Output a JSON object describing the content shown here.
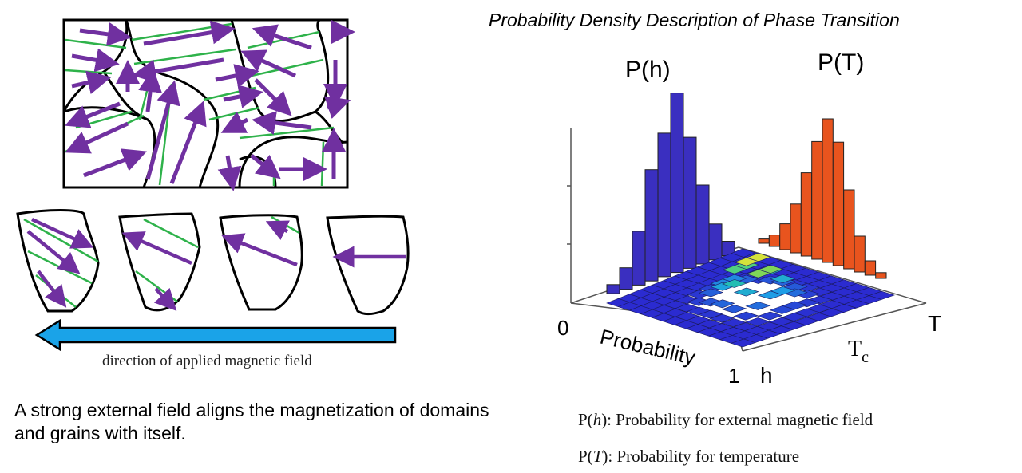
{
  "left_panel": {
    "field_direction_label": "direction of applied magnetic field",
    "caption": "A strong external field aligns the magnetization of domains and grains with itself.",
    "colors": {
      "arrow": "#7030a0",
      "boundary": "#2eb24a",
      "field_arrow": "#1aa3e8",
      "outline": "#000000"
    }
  },
  "right_panel": {
    "title": "Probability Density Description of Phase Transition",
    "label_ph": "P(h)",
    "label_pt": "P(T)",
    "axis_zero": "0",
    "axis_one": "1",
    "axis_probability": "Probability",
    "axis_h": "h",
    "axis_T": "T",
    "axis_Tc_main": "T",
    "axis_Tc_sub": "c",
    "legend_h": {
      "prefix": "P(",
      "var": "h",
      "suffix": "): Probability  for external magnetic  field"
    },
    "legend_t": {
      "prefix": "P(",
      "var": "T",
      "suffix": "): Probability  for temperature"
    },
    "colors": {
      "ph_bars": "#3a2fc0",
      "pt_bars": "#e8541e",
      "surface_low": "#2b2bd0",
      "surface_high": "#f2e53a"
    }
  },
  "chart_data": [
    {
      "type": "bar",
      "series": [
        {
          "name": "P(h)",
          "values": [
            0.05,
            0.12,
            0.3,
            0.62,
            0.8,
            1.0,
            0.73,
            0.44,
            0.2,
            0.08
          ]
        }
      ]
    },
    {
      "type": "bar",
      "series": [
        {
          "name": "P(T)",
          "values": [
            0.03,
            0.08,
            0.18,
            0.34,
            0.58,
            0.82,
            1.0,
            0.86,
            0.55,
            0.25,
            0.1,
            0.04
          ]
        }
      ]
    }
  ]
}
